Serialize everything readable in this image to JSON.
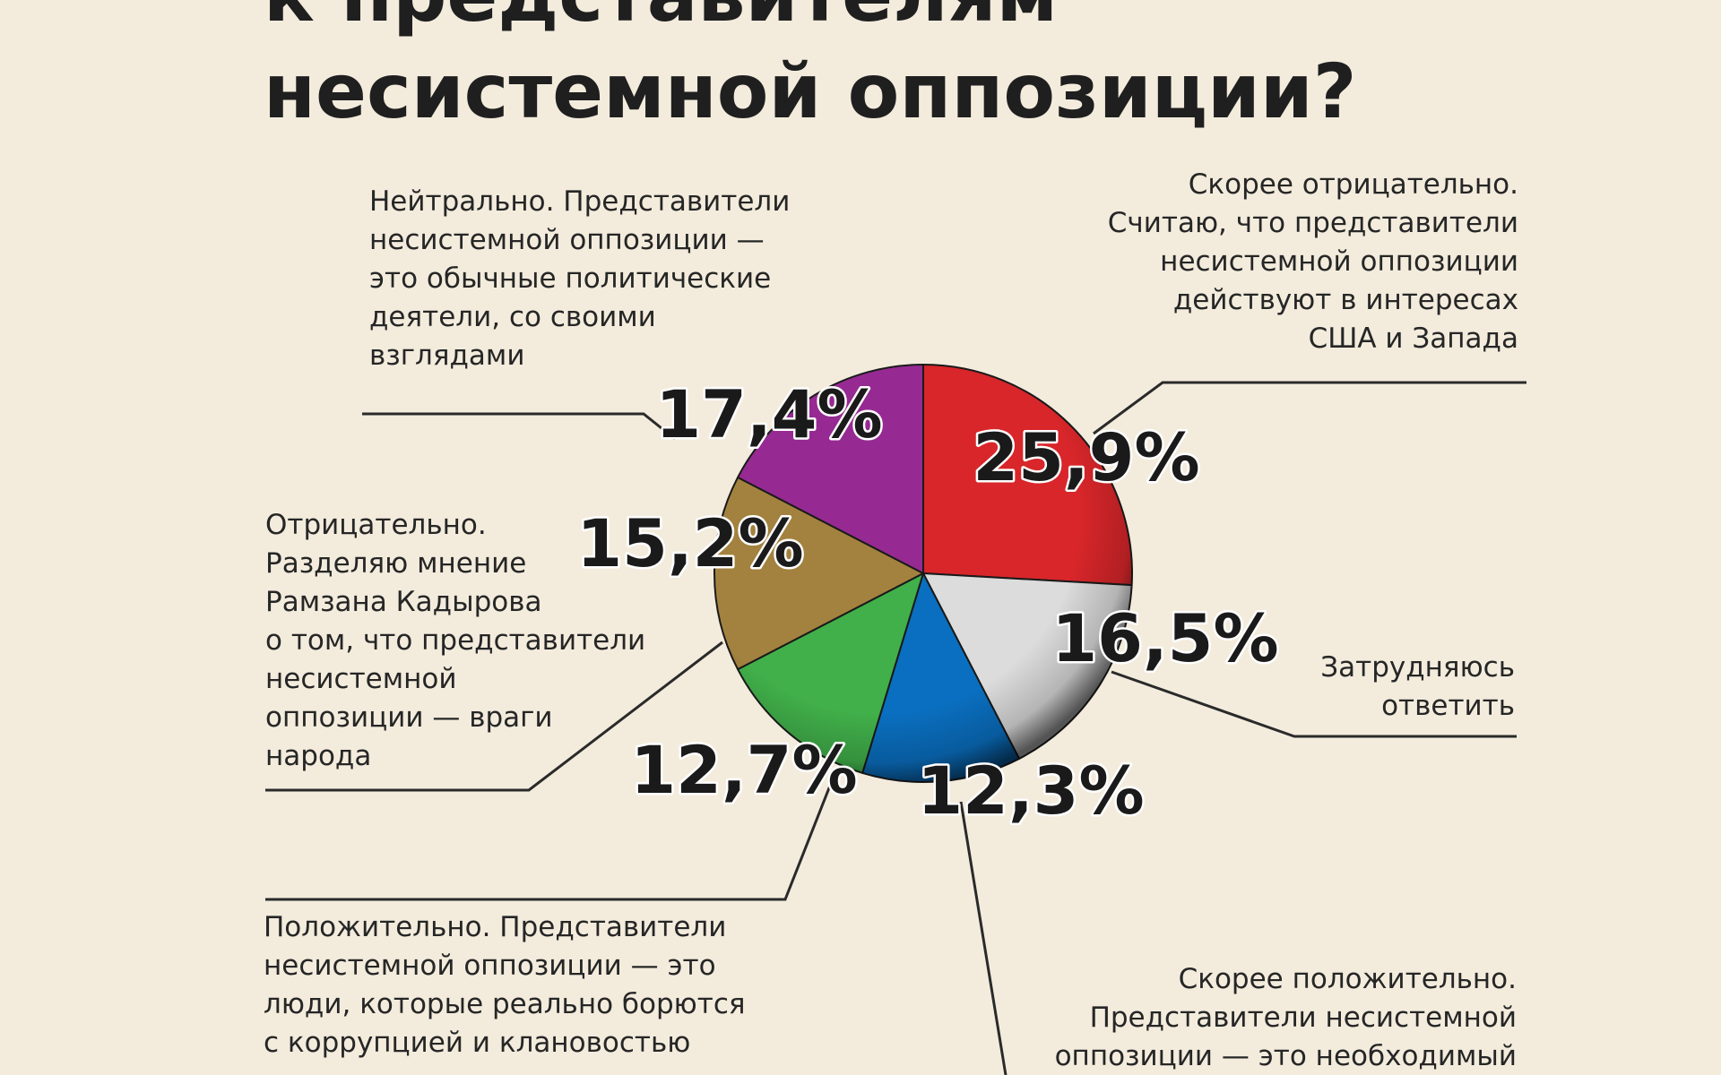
{
  "title_line1": "к представителям",
  "title_line2": "несистемной оппозиции?",
  "chart_data": {
    "type": "pie",
    "title": "к представителям несистемной оппозиции?",
    "slices": [
      {
        "label_lines": [
          "Скорее отрицательно.",
          "Считаю, что представители",
          "несистемной оппозиции",
          "действуют в интересах",
          "США и Запада"
        ],
        "value": 25.9,
        "value_label": "25,9%",
        "color": "#d8262a"
      },
      {
        "label_lines": [
          "Затрудняюсь",
          "ответить"
        ],
        "value": 16.5,
        "value_label": "16,5%",
        "color": "#dcdcdc"
      },
      {
        "label_lines": [
          "Скорее положительно.",
          "Представители несистемной",
          "оппозиции — это необходимый"
        ],
        "value": 12.3,
        "value_label": "12,3%",
        "color": "#0a6fc0"
      },
      {
        "label_lines": [
          "Положительно. Представители",
          "несистемной оппозиции — это",
          "люди, которые реально борются",
          "с коррупцией и клановостью"
        ],
        "value": 12.7,
        "value_label": "12,7%",
        "color": "#41b04a"
      },
      {
        "label_lines": [
          "Отрицательно.",
          "Разделяю мнение",
          "Рамзана Кадырова",
          "о том, что представители",
          "несистемной",
          "оппозиции — враги",
          "народа"
        ],
        "value": 15.2,
        "value_label": "15,2%",
        "color": "#a3823f"
      },
      {
        "label_lines": [
          "Нейтрально. Представители",
          "несистемной оппозиции —",
          "это обычные политические",
          "деятели, со своими",
          "взглядами"
        ],
        "value": 17.4,
        "value_label": "17,4%",
        "color": "#962a92"
      }
    ]
  }
}
